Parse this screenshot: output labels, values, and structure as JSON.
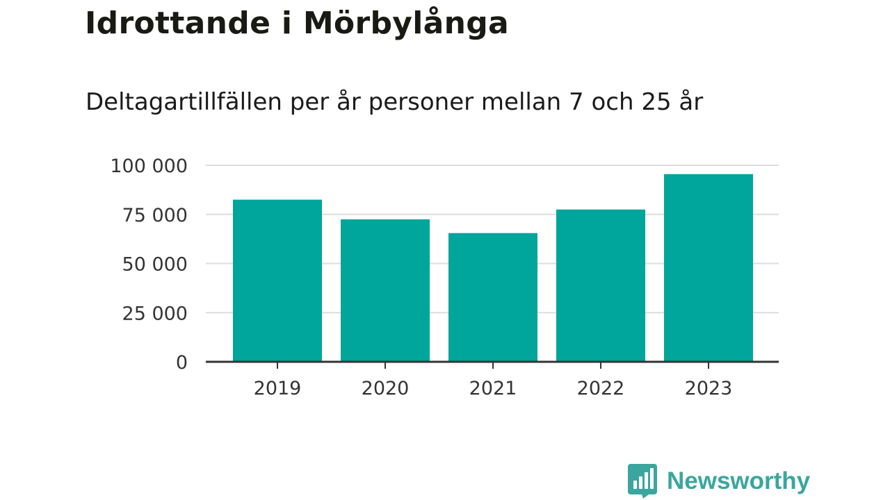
{
  "chart_data": {
    "type": "bar",
    "title": "Idrottande i Mörbylånga",
    "subtitle": "Deltagartillfällen per år personer mellan 7 och 25 år",
    "categories": [
      "2019",
      "2020",
      "2021",
      "2022",
      "2023"
    ],
    "values": [
      82500,
      72500,
      65500,
      77500,
      95500
    ],
    "ylim": [
      0,
      100000
    ],
    "yticks": [
      0,
      25000,
      50000,
      75000,
      100000
    ],
    "ytick_labels": [
      "0",
      "25 000",
      "50 000",
      "75 000",
      "100 000"
    ],
    "xlabel": "",
    "ylabel": "",
    "grid": true,
    "bar_color": "#00a59b",
    "grid_color": "#dddddd",
    "axis_color": "#333333"
  },
  "brand": {
    "name": "Newsworthy",
    "icon": "newsworthy-logo-icon",
    "color": "#3aa69e"
  }
}
